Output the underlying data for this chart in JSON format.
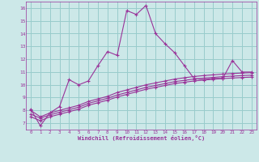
{
  "xlabel": "Windchill (Refroidissement éolien,°C)",
  "bg_color": "#cce8e8",
  "grid_color": "#99cccc",
  "line_color": "#993399",
  "x_ticks": [
    0,
    1,
    2,
    3,
    4,
    5,
    6,
    7,
    8,
    9,
    10,
    11,
    12,
    13,
    14,
    15,
    16,
    17,
    18,
    19,
    20,
    21,
    22,
    23
  ],
  "y_ticks": [
    7,
    8,
    9,
    10,
    11,
    12,
    13,
    14,
    15,
    16
  ],
  "ylim": [
    6.5,
    16.5
  ],
  "xlim": [
    -0.5,
    23.5
  ],
  "series1_y": [
    8.1,
    6.8,
    7.8,
    8.3,
    10.4,
    10.0,
    10.3,
    11.5,
    12.6,
    12.3,
    15.8,
    15.5,
    16.2,
    14.0,
    13.2,
    12.5,
    11.5,
    10.5,
    10.4,
    10.5,
    10.5,
    11.9,
    11.0,
    11.0
  ],
  "series2_y": [
    8.0,
    7.5,
    7.8,
    8.0,
    8.2,
    8.4,
    8.7,
    8.9,
    9.1,
    9.4,
    9.6,
    9.8,
    10.0,
    10.15,
    10.3,
    10.45,
    10.55,
    10.65,
    10.72,
    10.78,
    10.84,
    10.88,
    10.92,
    10.95
  ],
  "series3_y": [
    7.7,
    7.4,
    7.65,
    7.85,
    8.05,
    8.25,
    8.55,
    8.75,
    8.95,
    9.2,
    9.4,
    9.6,
    9.8,
    9.95,
    10.1,
    10.25,
    10.35,
    10.45,
    10.52,
    10.58,
    10.64,
    10.68,
    10.72,
    10.75
  ],
  "series4_y": [
    7.5,
    7.2,
    7.5,
    7.7,
    7.9,
    8.1,
    8.4,
    8.6,
    8.8,
    9.05,
    9.25,
    9.45,
    9.65,
    9.8,
    9.95,
    10.1,
    10.2,
    10.3,
    10.37,
    10.43,
    10.49,
    10.53,
    10.57,
    10.6
  ]
}
